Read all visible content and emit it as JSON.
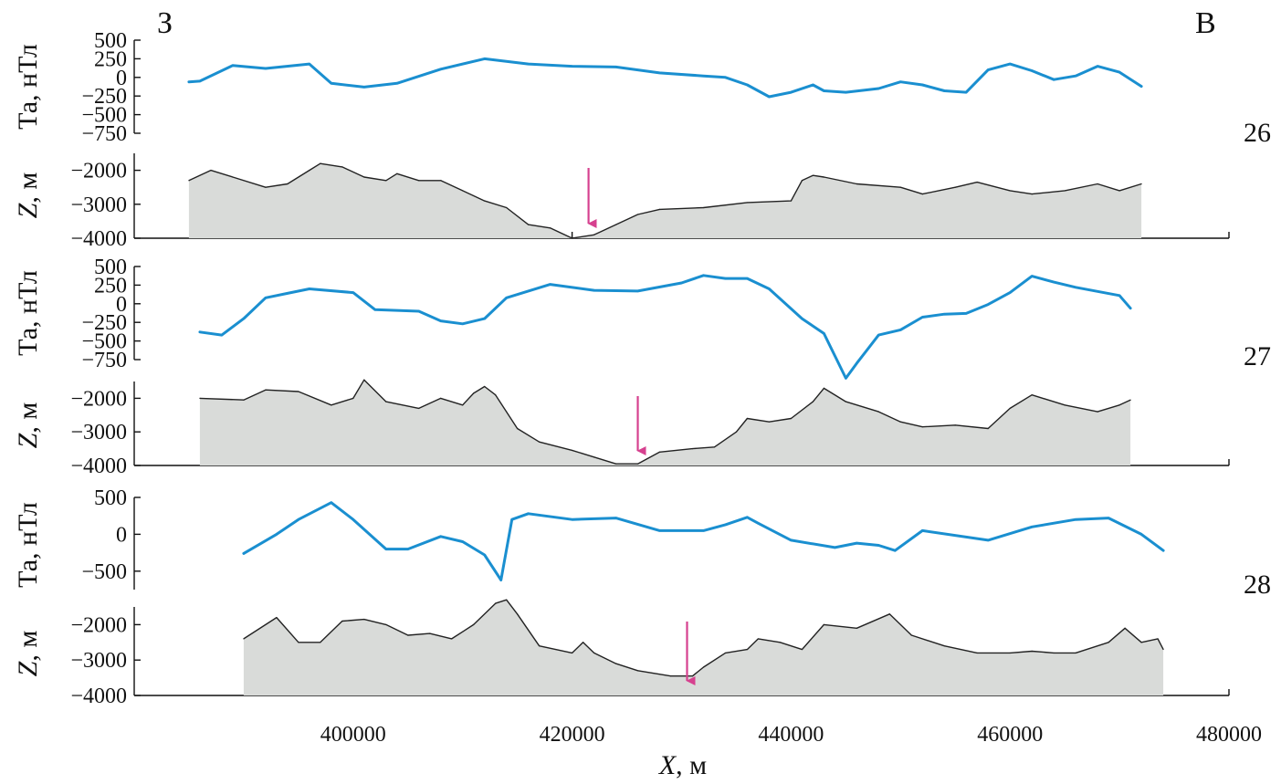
{
  "figure": {
    "corner_labels": {
      "left": "З",
      "right": "В"
    },
    "x_axis": {
      "title_italic": "X",
      "title_rest": ", м",
      "ticks": [
        400000,
        420000,
        440000,
        460000,
        480000
      ],
      "tick_labels": [
        "400000",
        "420000",
        "440000",
        "460000",
        "480000"
      ],
      "range": [
        380000,
        480000
      ]
    },
    "colors": {
      "magnetic_line": "#1a8fd0",
      "relief_fill": "#d9dbd9",
      "relief_line": "#222222",
      "arrow": "#d6418f"
    }
  },
  "chart_data": [
    {
      "type": "line",
      "profile": "26",
      "ylabel": "Та, нТл",
      "ylim": [
        -750,
        500
      ],
      "yticks": [
        500,
        250,
        0,
        -250,
        -500,
        -750
      ],
      "ytick_labels": [
        "500",
        "250",
        "0",
        "−250",
        "−500",
        "−750"
      ],
      "x": [
        385000,
        386000,
        389000,
        392000,
        396000,
        398000,
        401000,
        404000,
        408000,
        412000,
        416000,
        420000,
        424000,
        428000,
        432000,
        434000,
        436000,
        438000,
        440000,
        442000,
        443000,
        445000,
        448000,
        450000,
        452000,
        454000,
        456000,
        458000,
        460000,
        462000,
        464000,
        466000,
        468000,
        470000,
        472000
      ],
      "values": [
        -60,
        -50,
        160,
        120,
        180,
        -80,
        -130,
        -80,
        110,
        250,
        180,
        150,
        140,
        60,
        20,
        0,
        -100,
        -260,
        -200,
        -100,
        -180,
        -200,
        -150,
        -60,
        -100,
        -180,
        -200,
        100,
        180,
        90,
        -30,
        20,
        150,
        70,
        -120
      ]
    },
    {
      "type": "area",
      "profile": "26",
      "ylabel_italic": "Z",
      "ylabel_rest": ", м",
      "ylim": [
        -4000,
        -1500
      ],
      "yticks": [
        -2000,
        -3000,
        -4000
      ],
      "ytick_labels": [
        "−2000",
        "−3000",
        "−4000"
      ],
      "arrow_x": 421500,
      "x": [
        385000,
        387000,
        389000,
        392000,
        394000,
        396000,
        397000,
        399000,
        401000,
        403000,
        404000,
        406000,
        408000,
        410000,
        412000,
        414000,
        416000,
        418000,
        420000,
        422000,
        424000,
        426000,
        428000,
        432000,
        436000,
        440000,
        441000,
        442000,
        443000,
        446000,
        450000,
        452000,
        455000,
        457000,
        460000,
        462000,
        465000,
        468000,
        470000,
        472000
      ],
      "values": [
        -2300,
        -2000,
        -2200,
        -2500,
        -2400,
        -2000,
        -1800,
        -1900,
        -2200,
        -2300,
        -2100,
        -2300,
        -2300,
        -2600,
        -2900,
        -3100,
        -3600,
        -3700,
        -4000,
        -3900,
        -3600,
        -3300,
        -3150,
        -3100,
        -2950,
        -2900,
        -2300,
        -2150,
        -2200,
        -2400,
        -2500,
        -2700,
        -2500,
        -2350,
        -2600,
        -2700,
        -2600,
        -2400,
        -2600,
        -2400
      ]
    },
    {
      "type": "line",
      "profile": "27",
      "ylabel": "Та, нТл",
      "ylim": [
        -750,
        500
      ],
      "yticks": [
        500,
        250,
        0,
        -250,
        -500,
        -750
      ],
      "ytick_labels": [
        "500",
        "250",
        "0",
        "−250",
        "−500",
        "−750"
      ],
      "x": [
        386000,
        388000,
        390000,
        392000,
        394000,
        396000,
        400000,
        402000,
        406000,
        408000,
        410000,
        412000,
        414000,
        418000,
        422000,
        426000,
        430000,
        432000,
        434000,
        436000,
        438000,
        441000,
        443000,
        444000,
        445000,
        446000,
        448000,
        450000,
        452000,
        454000,
        456000,
        458000,
        460000,
        462000,
        464000,
        466000,
        470000,
        471000
      ],
      "values": [
        -380,
        -420,
        -200,
        80,
        140,
        200,
        150,
        -80,
        -100,
        -230,
        -270,
        -200,
        80,
        260,
        180,
        170,
        280,
        380,
        340,
        340,
        200,
        -200,
        -400,
        -700,
        -1000,
        -800,
        -420,
        -350,
        -180,
        -140,
        -130,
        -10,
        150,
        370,
        290,
        220,
        110,
        -60
      ]
    },
    {
      "type": "area",
      "profile": "27",
      "ylabel_italic": "Z",
      "ylabel_rest": ", м",
      "ylim": [
        -4000,
        -1500
      ],
      "yticks": [
        -2000,
        -3000,
        -4000
      ],
      "ytick_labels": [
        "−2000",
        "−3000",
        "−4000"
      ],
      "arrow_x": 426000,
      "x": [
        386000,
        390000,
        392000,
        395000,
        398000,
        400000,
        401000,
        403000,
        406000,
        408000,
        410000,
        411000,
        412000,
        413000,
        415000,
        417000,
        420000,
        422000,
        424000,
        426000,
        428000,
        431000,
        433000,
        435000,
        436000,
        438000,
        440000,
        442000,
        443000,
        445000,
        448000,
        450000,
        452000,
        455000,
        458000,
        460000,
        462000,
        465000,
        468000,
        470000,
        471000
      ],
      "values": [
        -2000,
        -2050,
        -1750,
        -1800,
        -2200,
        -2000,
        -1450,
        -2100,
        -2300,
        -2000,
        -2200,
        -1850,
        -1650,
        -1900,
        -2900,
        -3300,
        -3550,
        -3750,
        -3950,
        -3950,
        -3600,
        -3500,
        -3450,
        -3000,
        -2600,
        -2700,
        -2600,
        -2100,
        -1700,
        -2100,
        -2400,
        -2700,
        -2850,
        -2800,
        -2900,
        -2300,
        -1900,
        -2200,
        -2400,
        -2200,
        -2050
      ]
    },
    {
      "type": "line",
      "profile": "28",
      "ylabel": "Та, нТл",
      "ylim": [
        -750,
        500
      ],
      "yticks": [
        500,
        0,
        -500
      ],
      "ytick_labels": [
        "500",
        "0",
        "−500"
      ],
      "x": [
        390000,
        393000,
        395000,
        398000,
        400000,
        403000,
        405000,
        408000,
        410000,
        412000,
        413500,
        414500,
        416000,
        420000,
        424000,
        428000,
        432000,
        434000,
        436000,
        437000,
        440000,
        444000,
        446000,
        448000,
        449500,
        452000,
        458000,
        462000,
        466000,
        469000,
        472000,
        474000
      ],
      "values": [
        -260,
        0,
        200,
        430,
        200,
        -200,
        -200,
        -30,
        -100,
        -280,
        -620,
        200,
        280,
        200,
        220,
        50,
        50,
        130,
        230,
        150,
        -80,
        -180,
        -120,
        -150,
        -220,
        50,
        -80,
        100,
        200,
        220,
        0,
        -220
      ]
    },
    {
      "type": "area",
      "profile": "28",
      "ylabel_italic": "Z",
      "ylabel_rest": ", м",
      "ylim": [
        -4000,
        -1500
      ],
      "yticks": [
        -2000,
        -3000,
        -4000
      ],
      "ytick_labels": [
        "−2000",
        "−3000",
        "−4000"
      ],
      "arrow_x": 430500,
      "x": [
        390000,
        393000,
        395000,
        397000,
        399000,
        401000,
        403000,
        405000,
        407000,
        409000,
        411000,
        413000,
        414000,
        415000,
        417000,
        420000,
        421000,
        422000,
        424000,
        426000,
        429000,
        431000,
        432000,
        434000,
        436000,
        437000,
        439000,
        441000,
        443000,
        446000,
        449000,
        451000,
        454000,
        457000,
        460000,
        462000,
        464000,
        466000,
        469000,
        470500,
        472000,
        473500,
        474000
      ],
      "values": [
        -2400,
        -1800,
        -2500,
        -2500,
        -1900,
        -1850,
        -2000,
        -2300,
        -2250,
        -2400,
        -2000,
        -1400,
        -1300,
        -1700,
        -2600,
        -2800,
        -2500,
        -2800,
        -3100,
        -3300,
        -3450,
        -3450,
        -3200,
        -2800,
        -2700,
        -2400,
        -2500,
        -2700,
        -2000,
        -2100,
        -1700,
        -2300,
        -2600,
        -2800,
        -2800,
        -2750,
        -2800,
        -2800,
        -2500,
        -2100,
        -2500,
        -2400,
        -2700
      ]
    }
  ],
  "profile_numbers": [
    "26",
    "27",
    "28"
  ]
}
